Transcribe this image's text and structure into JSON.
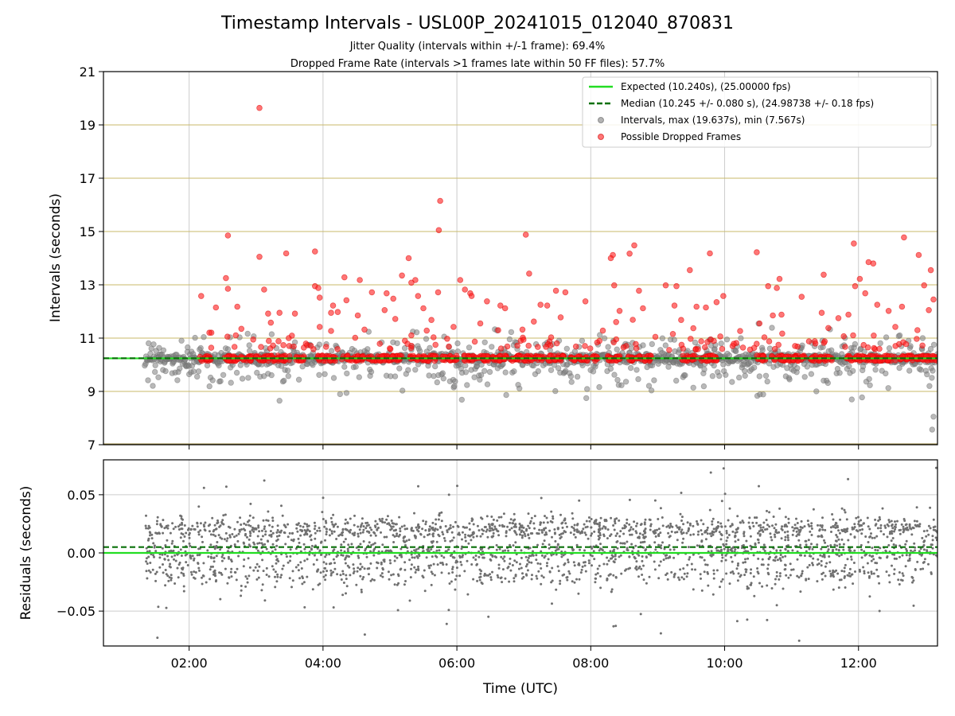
{
  "figure": {
    "title": "Timestamp Intervals - USL00P_20241015_012040_870831",
    "subtitle_1": "Jitter Quality (intervals within +/-1 frame): 69.4%",
    "subtitle_2": "Dropped Frame Rate (intervals >1 frames late within 50 FF files): 57.7%"
  },
  "chart_data": [
    {
      "type": "scatter",
      "panel": "intervals",
      "ylabel": "Intervals (seconds)",
      "xlabel": "",
      "xlim": [
        0.72,
        13.18
      ],
      "ylim": [
        7,
        21
      ],
      "x_unit": "hours (UTC)",
      "x_ticks": [
        2,
        4,
        6,
        8,
        10,
        12
      ],
      "x_tick_labels": [
        "02:00",
        "04:00",
        "06:00",
        "08:00",
        "10:00",
        "12:00"
      ],
      "y_ticks": [
        7,
        9,
        11,
        13,
        15,
        17,
        19,
        21
      ],
      "y_tick_labels": [
        "7",
        "9",
        "11",
        "13",
        "15",
        "17",
        "19",
        "21"
      ],
      "grid": true,
      "legend_position": "top-right",
      "legend": [
        {
          "label": "Expected (10.240s), (25.00000 fps)",
          "kind": "line",
          "style": "solid",
          "color": "#22dd22"
        },
        {
          "label": "Median (10.245 +/- 0.080 s), (24.98738 +/- 0.18 fps)",
          "kind": "line",
          "style": "dashed",
          "color": "#087008"
        },
        {
          "label": "Intervals, max (19.637s), min (7.567s)",
          "kind": "marker",
          "color": "#808080"
        },
        {
          "label": "Possible Dropped Frames",
          "kind": "marker",
          "color": "#ff1a1a"
        }
      ],
      "expected_line": 10.24,
      "median_line": 10.245,
      "start_x": 1.34,
      "end_x": 13.18,
      "intervals_summary": {
        "max": 19.637,
        "min": 7.567
      },
      "dropped_outliers": [
        {
          "x": 3.05,
          "y": 19.637
        },
        {
          "x": 5.75,
          "y": 16.15
        },
        {
          "x": 5.73,
          "y": 15.05
        },
        {
          "x": 2.58,
          "y": 14.85
        },
        {
          "x": 7.03,
          "y": 14.88
        },
        {
          "x": 12.68,
          "y": 14.78
        },
        {
          "x": 11.93,
          "y": 14.55
        },
        {
          "x": 8.65,
          "y": 14.48
        },
        {
          "x": 3.88,
          "y": 14.25
        },
        {
          "x": 3.45,
          "y": 14.18
        },
        {
          "x": 10.48,
          "y": 14.22
        },
        {
          "x": 9.78,
          "y": 14.18
        },
        {
          "x": 8.58,
          "y": 14.17
        },
        {
          "x": 12.9,
          "y": 14.12
        },
        {
          "x": 8.33,
          "y": 14.12
        },
        {
          "x": 3.05,
          "y": 14.05
        },
        {
          "x": 8.3,
          "y": 14.0
        },
        {
          "x": 5.28,
          "y": 14.0
        },
        {
          "x": 12.15,
          "y": 13.85
        },
        {
          "x": 12.22,
          "y": 13.8
        },
        {
          "x": 13.08,
          "y": 13.55
        },
        {
          "x": 9.48,
          "y": 13.55
        },
        {
          "x": 11.48,
          "y": 13.38
        },
        {
          "x": 7.08,
          "y": 13.42
        },
        {
          "x": 5.18,
          "y": 13.35
        },
        {
          "x": 2.55,
          "y": 13.25
        },
        {
          "x": 4.32,
          "y": 13.28
        },
        {
          "x": 5.38,
          "y": 13.18
        },
        {
          "x": 12.02,
          "y": 13.22
        },
        {
          "x": 10.82,
          "y": 13.22
        },
        {
          "x": 6.05,
          "y": 13.18
        },
        {
          "x": 5.32,
          "y": 13.08
        },
        {
          "x": 4.55,
          "y": 13.18
        },
        {
          "x": 9.28,
          "y": 12.95
        },
        {
          "x": 10.65,
          "y": 12.95
        },
        {
          "x": 9.12,
          "y": 12.98
        },
        {
          "x": 3.88,
          "y": 12.95
        },
        {
          "x": 12.98,
          "y": 12.98
        },
        {
          "x": 3.93,
          "y": 12.88
        },
        {
          "x": 2.58,
          "y": 12.85
        },
        {
          "x": 3.12,
          "y": 12.82
        },
        {
          "x": 6.12,
          "y": 12.82
        },
        {
          "x": 7.62,
          "y": 12.72
        },
        {
          "x": 4.95,
          "y": 12.68
        },
        {
          "x": 10.78,
          "y": 12.88
        },
        {
          "x": 5.72,
          "y": 12.72
        },
        {
          "x": 7.48,
          "y": 12.78
        },
        {
          "x": 11.15,
          "y": 12.55
        },
        {
          "x": 6.2,
          "y": 12.68
        },
        {
          "x": 4.73,
          "y": 12.72
        },
        {
          "x": 8.72,
          "y": 12.78
        },
        {
          "x": 9.98,
          "y": 12.58
        },
        {
          "x": 12.1,
          "y": 12.68
        },
        {
          "x": 2.18,
          "y": 12.58
        },
        {
          "x": 6.22,
          "y": 12.58
        },
        {
          "x": 6.45,
          "y": 12.38
        },
        {
          "x": 6.65,
          "y": 12.22
        },
        {
          "x": 7.25,
          "y": 12.25
        },
        {
          "x": 7.35,
          "y": 12.22
        },
        {
          "x": 7.92,
          "y": 12.38
        },
        {
          "x": 5.42,
          "y": 12.58
        },
        {
          "x": 5.05,
          "y": 12.48
        },
        {
          "x": 4.35,
          "y": 12.42
        },
        {
          "x": 3.95,
          "y": 12.52
        },
        {
          "x": 2.4,
          "y": 12.15
        },
        {
          "x": 2.72,
          "y": 12.18
        },
        {
          "x": 3.18,
          "y": 11.92
        },
        {
          "x": 3.35,
          "y": 11.95
        },
        {
          "x": 3.58,
          "y": 11.92
        },
        {
          "x": 4.12,
          "y": 11.95
        },
        {
          "x": 4.22,
          "y": 11.98
        },
        {
          "x": 4.52,
          "y": 11.85
        },
        {
          "x": 4.92,
          "y": 12.05
        },
        {
          "x": 5.08,
          "y": 11.72
        },
        {
          "x": 5.5,
          "y": 12.12
        },
        {
          "x": 5.62,
          "y": 11.68
        },
        {
          "x": 6.72,
          "y": 12.12
        },
        {
          "x": 7.55,
          "y": 11.78
        },
        {
          "x": 8.43,
          "y": 12.02
        },
        {
          "x": 8.78,
          "y": 12.12
        },
        {
          "x": 9.25,
          "y": 12.22
        },
        {
          "x": 9.58,
          "y": 12.18
        },
        {
          "x": 9.72,
          "y": 12.15
        },
        {
          "x": 9.88,
          "y": 12.35
        },
        {
          "x": 10.72,
          "y": 11.85
        },
        {
          "x": 10.85,
          "y": 11.88
        },
        {
          "x": 11.45,
          "y": 11.95
        },
        {
          "x": 11.7,
          "y": 11.75
        },
        {
          "x": 11.85,
          "y": 11.88
        },
        {
          "x": 12.28,
          "y": 12.25
        },
        {
          "x": 12.45,
          "y": 12.02
        },
        {
          "x": 12.65,
          "y": 12.18
        },
        {
          "x": 13.12,
          "y": 12.45
        },
        {
          "x": 13.05,
          "y": 12.05
        },
        {
          "x": 11.95,
          "y": 12.95
        },
        {
          "x": 8.35,
          "y": 12.98
        },
        {
          "x": 4.15,
          "y": 12.22
        },
        {
          "x": 3.22,
          "y": 11.58
        },
        {
          "x": 5.55,
          "y": 11.28
        },
        {
          "x": 6.35,
          "y": 11.55
        },
        {
          "x": 7.15,
          "y": 11.62
        },
        {
          "x": 8.18,
          "y": 11.28
        },
        {
          "x": 9.35,
          "y": 11.68
        },
        {
          "x": 10.52,
          "y": 11.55
        },
        {
          "x": 11.55,
          "y": 11.38
        },
        {
          "x": 12.55,
          "y": 11.42
        },
        {
          "x": 2.78,
          "y": 11.35
        },
        {
          "x": 3.95,
          "y": 11.42
        },
        {
          "x": 4.62,
          "y": 11.32
        },
        {
          "x": 5.95,
          "y": 11.42
        },
        {
          "x": 6.98,
          "y": 11.32
        }
      ]
    },
    {
      "type": "scatter",
      "panel": "residuals",
      "ylabel": "Residuals (seconds)",
      "xlabel": "Time (UTC)",
      "xlim": [
        0.72,
        13.18
      ],
      "ylim": [
        -0.08,
        0.08
      ],
      "x_ticks": [
        2,
        4,
        6,
        8,
        10,
        12
      ],
      "x_tick_labels": [
        "02:00",
        "04:00",
        "06:00",
        "08:00",
        "10:00",
        "12:00"
      ],
      "y_ticks": [
        -0.05,
        0.0,
        0.05
      ],
      "y_tick_labels": [
        "−0.05",
        "0.00",
        "0.05"
      ],
      "grid": true,
      "expected_line": 0.0,
      "median_line": 0.005,
      "start_x": 1.34,
      "end_x": 13.18,
      "residual_bands": [
        0.02,
        0.0,
        -0.018
      ]
    }
  ]
}
